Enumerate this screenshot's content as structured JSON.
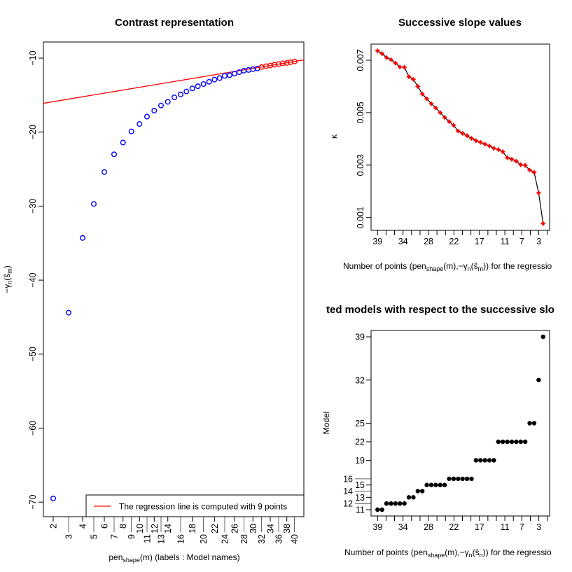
{
  "chart_data": [
    {
      "type": "scatter",
      "title": "Contrast representation",
      "xlabel": {
        "main": "pen",
        "sub": "shape",
        "rest": "(m) (labels : Model names)"
      },
      "ylabel": {
        "pre": "−γ",
        "sub1": "n",
        "mid": "(ŝ",
        "sub2": "m",
        "post": ")"
      },
      "x_tick_labels": [
        "2",
        "3",
        "4",
        "5",
        "6",
        "7",
        "8",
        "9",
        "10",
        "11",
        "12",
        "13",
        "14",
        "16",
        "18",
        "20",
        "22",
        "24",
        "26",
        "28",
        "30",
        "32",
        "34",
        "36",
        "38",
        "40"
      ],
      "y_ticks": [
        -10,
        -20,
        -30,
        -40,
        -50,
        -60,
        -70
      ],
      "y_tick_labels": [
        "−10",
        "−20",
        "−30",
        "−40",
        "−50",
        "−60",
        "−70"
      ],
      "ylim": [
        -71.5,
        -8
      ],
      "models": [
        2,
        3,
        4,
        5,
        6,
        7,
        8,
        9,
        10,
        11,
        12,
        13,
        14,
        15,
        16,
        17,
        18,
        19,
        20,
        21,
        22,
        23,
        24,
        25,
        26,
        27,
        28,
        29,
        30,
        31,
        32,
        33,
        34,
        35,
        36,
        37,
        38,
        39,
        40
      ],
      "values": [
        -69.5,
        -44.4,
        -34.3,
        -29.7,
        -25.4,
        -23.0,
        -21.4,
        -19.9,
        -18.9,
        -17.9,
        -17.1,
        -16.4,
        -15.9,
        -15.3,
        -14.9,
        -14.5,
        -14.1,
        -13.8,
        -13.5,
        -13.2,
        -12.9,
        -12.7,
        -12.4,
        -12.3,
        -12.1,
        -11.9,
        -11.7,
        -11.6,
        -11.5,
        -11.4,
        -11.2,
        -11.1,
        -11.0,
        -10.9,
        -10.8,
        -10.7,
        -10.65,
        -10.55,
        -10.45
      ],
      "regression_points": 9,
      "legend": {
        "text": "The regression line is computed with 9 points",
        "placement": "bottom-right"
      },
      "colors": {
        "points": "#0000ff",
        "regression": "#ff0000"
      }
    },
    {
      "type": "line",
      "title": "Successive slope values",
      "xlabel": {
        "pre": "Number of points (pen",
        "sub1": "shape",
        "mid": "(m),−γ",
        "sub2": "n",
        "mid2": "(ŝ",
        "sub3": "m",
        "post": ")) for the regressio"
      },
      "ylabel": "κ",
      "x": [
        39,
        38,
        37,
        36,
        35,
        34,
        33,
        32,
        31,
        30,
        29,
        28,
        27,
        26,
        25,
        24,
        23,
        22,
        21,
        20,
        19,
        18,
        17,
        16,
        15,
        14,
        13,
        12,
        11,
        10,
        9,
        8,
        7,
        6,
        5,
        4,
        3,
        2
      ],
      "values": [
        0.00736,
        0.00725,
        0.0071,
        0.00702,
        0.00689,
        0.00674,
        0.00673,
        0.00637,
        0.00627,
        0.006,
        0.00571,
        0.00553,
        0.00534,
        0.00518,
        0.005,
        0.00482,
        0.00466,
        0.00452,
        0.0043,
        0.00421,
        0.00412,
        0.00402,
        0.00393,
        0.00387,
        0.0038,
        0.00373,
        0.00364,
        0.00359,
        0.00351,
        0.00328,
        0.00322,
        0.00315,
        0.00301,
        0.00299,
        0.00281,
        0.00272,
        0.00194,
        0.00077
      ],
      "x_tick_labels": [
        "39",
        "34",
        "28",
        "22",
        "17",
        "11",
        "7",
        "3"
      ],
      "y_ticks": [
        0.001,
        0.003,
        0.005,
        0.007
      ],
      "y_tick_labels": [
        "0.001",
        "0.003",
        "0.005",
        "0.007"
      ],
      "colors": {
        "line": "#000000",
        "points": "#ff0000"
      }
    },
    {
      "type": "scatter",
      "title": "ted models with respect to the successive slo",
      "xlabel": {
        "pre": "Number of points (pen",
        "sub1": "shape",
        "mid": "(m),−γ",
        "sub2": "n",
        "mid2": "(ŝ",
        "sub3": "n",
        "post": ")) for the regressio"
      },
      "ylabel": "Model",
      "x": [
        39,
        38,
        37,
        36,
        35,
        34,
        33,
        32,
        31,
        30,
        29,
        28,
        27,
        26,
        25,
        24,
        23,
        22,
        21,
        20,
        19,
        18,
        17,
        16,
        15,
        14,
        13,
        12,
        11,
        10,
        9,
        8,
        7,
        6,
        5,
        4,
        3,
        2
      ],
      "values": [
        11,
        11,
        12,
        12,
        12,
        12,
        12,
        13,
        13,
        14,
        14,
        15,
        15,
        15,
        15,
        15,
        16,
        16,
        16,
        16,
        16,
        16,
        19,
        19,
        19,
        19,
        19,
        22,
        22,
        22,
        22,
        22,
        22,
        22,
        25,
        25,
        32,
        39
      ],
      "highlight_model": 22,
      "x_tick_labels": [
        "39",
        "34",
        "28",
        "22",
        "17",
        "11",
        "7",
        "3"
      ],
      "y_ticks": [
        11,
        12,
        13,
        14,
        15,
        16,
        19,
        22,
        25,
        32,
        39
      ],
      "colors": {
        "points": "#000000",
        "highlight": "#0000ff"
      }
    }
  ]
}
